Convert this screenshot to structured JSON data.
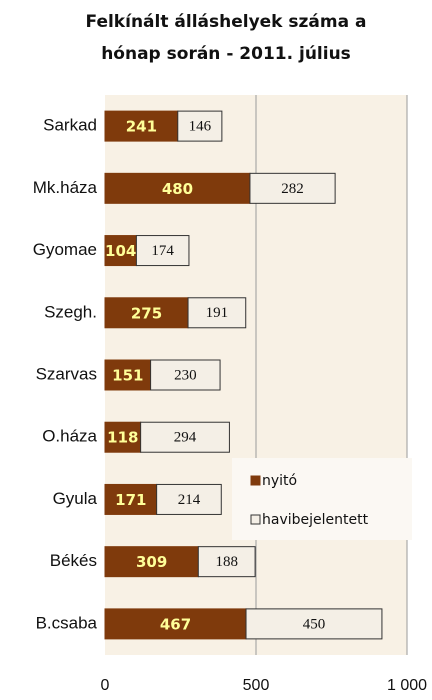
{
  "chart_data": {
    "type": "stacked-barh",
    "title": "Felkínált  álláshelyek száma a",
    "subtitle": "hónap során - 2011. július",
    "categories": [
      "Sarkad",
      "Mk.háza",
      "Gyomae",
      "Szegh.",
      "Szarvas",
      "O.háza",
      "Gyula",
      "Békés",
      "B.csaba"
    ],
    "series": [
      {
        "name": "nyitó",
        "color": "#7f3a0c",
        "values": [
          241,
          480,
          104,
          275,
          151,
          118,
          171,
          309,
          467
        ]
      },
      {
        "name": "havibejelentett",
        "color": "#f4efe6",
        "values": [
          146,
          282,
          174,
          191,
          230,
          294,
          214,
          188,
          450
        ]
      }
    ],
    "xlim": [
      0,
      1000
    ],
    "xticks": [
      0,
      500,
      {
        "value": 1000,
        "label": "1 000"
      }
    ],
    "grid": true,
    "legend": "right"
  }
}
